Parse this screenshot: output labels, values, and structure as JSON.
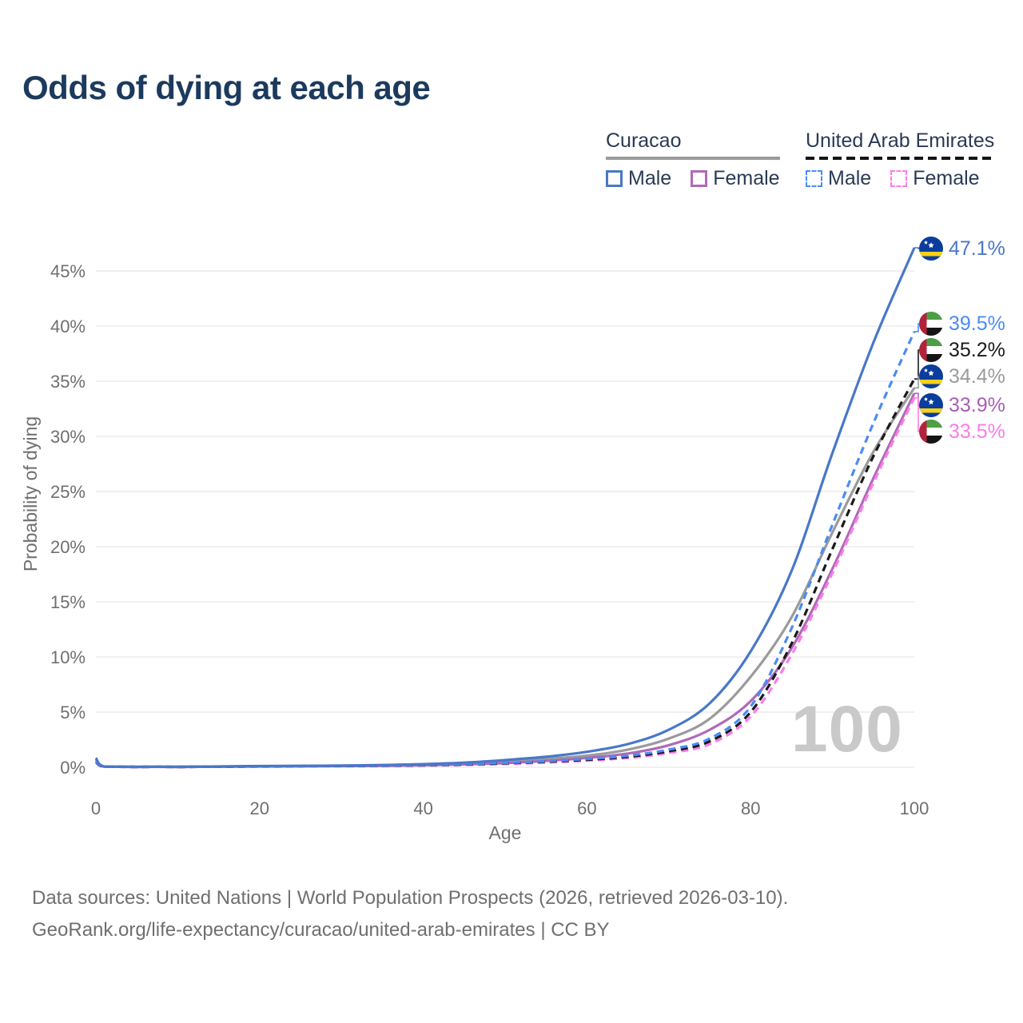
{
  "title": "Odds of dying at each age",
  "legend": {
    "groups": [
      {
        "name": "Curacao",
        "line_style": "solid",
        "line_color": "#9b9b9b",
        "items": [
          {
            "label": "Male",
            "color": "#4878c8",
            "dashed": false
          },
          {
            "label": "Female",
            "color": "#b069b8",
            "dashed": false
          }
        ]
      },
      {
        "name": "United Arab Emirates",
        "line_style": "dashed",
        "line_color": "#1a1a1a",
        "items": [
          {
            "label": "Male",
            "color": "#4b8bf5",
            "dashed": true
          },
          {
            "label": "Female",
            "color": "#fb7ce8",
            "dashed": true
          }
        ]
      }
    ]
  },
  "chart_data": {
    "type": "line",
    "title": "Odds of dying at each age",
    "xlabel": "Age",
    "ylabel": "Probability of dying",
    "xlim": [
      0,
      100
    ],
    "ylim_percent": [
      0,
      47.5
    ],
    "x_ticks": [
      0,
      20,
      40,
      60,
      80,
      100
    ],
    "y_ticks_percent": [
      0,
      5,
      10,
      15,
      20,
      25,
      30,
      35,
      40,
      45
    ],
    "grid": "horizontal-only",
    "legend_position": "top-right",
    "watermark_age_readout": "100",
    "ages": [
      0,
      1,
      5,
      10,
      15,
      20,
      25,
      30,
      35,
      40,
      45,
      50,
      55,
      60,
      65,
      70,
      75,
      80,
      85,
      90,
      95,
      100
    ],
    "series": [
      {
        "id": "curacao-male",
        "country": "Curacao",
        "sex": "Male",
        "style": "solid",
        "color": "#4878c8",
        "label_color": "#4878c8",
        "flag": "curacao",
        "end_label": "47.1%",
        "end_value_percent": 47.1,
        "values_percent": [
          0.85,
          0.07,
          0.04,
          0.04,
          0.07,
          0.11,
          0.13,
          0.16,
          0.2,
          0.28,
          0.42,
          0.65,
          0.95,
          1.4,
          2.1,
          3.4,
          5.8,
          10.5,
          17.8,
          28.5,
          38.5,
          47.1
        ]
      },
      {
        "id": "uae-male",
        "country": "United Arab Emirates",
        "sex": "Male",
        "style": "dashed",
        "color": "#4b8bf5",
        "label_color": "#4b8bf5",
        "flag": "uae",
        "end_label": "39.5%",
        "end_value_percent": 39.5,
        "values_percent": [
          0.55,
          0.05,
          0.03,
          0.04,
          0.06,
          0.09,
          0.11,
          0.13,
          0.15,
          0.2,
          0.28,
          0.4,
          0.55,
          0.75,
          1.05,
          1.6,
          2.6,
          5.5,
          12.6,
          22.0,
          31.2,
          39.5
        ]
      },
      {
        "id": "uae-total",
        "country": "United Arab Emirates",
        "sex": "Total",
        "style": "dashed",
        "color": "#1a1a1a",
        "label_color": "#1a1a1a",
        "flag": "uae",
        "end_label": "35.2%",
        "end_value_percent": 35.2,
        "values_percent": [
          0.5,
          0.05,
          0.03,
          0.03,
          0.05,
          0.08,
          0.1,
          0.12,
          0.14,
          0.18,
          0.25,
          0.36,
          0.5,
          0.68,
          0.95,
          1.45,
          2.35,
          5.0,
          11.2,
          19.8,
          28.2,
          35.2
        ]
      },
      {
        "id": "curacao-total",
        "country": "Curacao",
        "sex": "Total",
        "style": "solid",
        "color": "#9b9b9b",
        "label_color": "#9b9b9b",
        "flag": "curacao",
        "end_label": "34.4%",
        "end_value_percent": 34.4,
        "values_percent": [
          0.75,
          0.06,
          0.03,
          0.03,
          0.06,
          0.09,
          0.11,
          0.13,
          0.16,
          0.22,
          0.33,
          0.5,
          0.75,
          1.05,
          1.6,
          2.6,
          4.4,
          8.2,
          13.6,
          21.3,
          28.6,
          34.4
        ]
      },
      {
        "id": "curacao-female",
        "country": "Curacao",
        "sex": "Female",
        "style": "solid",
        "color": "#b069b8",
        "label_color": "#a75fb5",
        "flag": "curacao",
        "end_label": "33.9%",
        "end_value_percent": 33.9,
        "values_percent": [
          0.65,
          0.05,
          0.03,
          0.03,
          0.05,
          0.07,
          0.09,
          0.11,
          0.13,
          0.18,
          0.26,
          0.38,
          0.58,
          0.85,
          1.25,
          2.0,
          3.4,
          6.0,
          10.8,
          18.0,
          26.2,
          33.9
        ]
      },
      {
        "id": "uae-female",
        "country": "United Arab Emirates",
        "sex": "Female",
        "style": "dashed",
        "color": "#fb7ce8",
        "label_color": "#fb7ce8",
        "flag": "uae",
        "end_label": "33.5%",
        "end_value_percent": 33.5,
        "values_percent": [
          0.45,
          0.04,
          0.02,
          0.03,
          0.04,
          0.06,
          0.08,
          0.09,
          0.11,
          0.15,
          0.21,
          0.3,
          0.43,
          0.6,
          0.85,
          1.3,
          2.1,
          4.6,
          10.2,
          17.6,
          25.8,
          33.5
        ]
      }
    ]
  },
  "footer": {
    "line1": "Data sources: United Nations | World Population Prospects (2026, retrieved 2026-03-10).",
    "line2": "GeoRank.org/life-expectancy/curacao/united-arab-emirates | CC BY"
  }
}
